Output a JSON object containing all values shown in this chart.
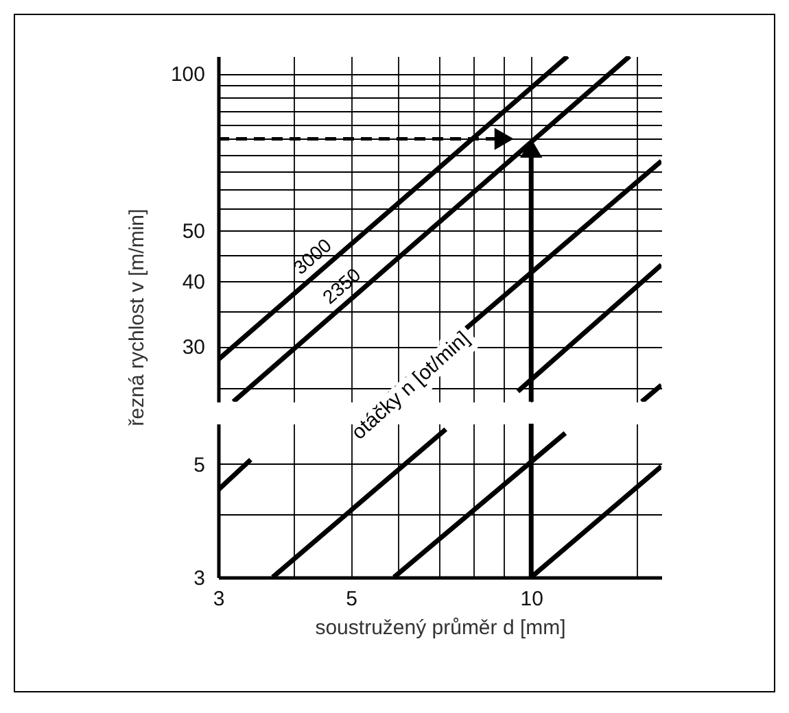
{
  "chart_data": [
    {
      "type": "line",
      "ylabel": "řezná rychlost v [m/min]",
      "annotations": [
        "otáčky n [ot/min]"
      ],
      "log": "xy",
      "grid": true,
      "tick_labels": "y",
      "marker": "none",
      "xlim": [
        3,
        16.5
      ],
      "ylim": [
        23.5,
        108
      ],
      "xticks": [
        3,
        {
          "value": 4,
          "label": null
        },
        5,
        {
          "value": 6,
          "label": null
        },
        {
          "value": 7,
          "label": null
        },
        {
          "value": 8,
          "label": null
        },
        {
          "value": 9,
          "label": null
        },
        10,
        {
          "value": 15,
          "label": null
        }
      ],
      "yticks": [
        {
          "value": 25,
          "label": null
        },
        30,
        {
          "value": 35,
          "label": null
        },
        40,
        {
          "value": 45,
          "label": null
        },
        50,
        {
          "value": 55,
          "label": null
        },
        {
          "value": 60,
          "label": null
        },
        {
          "value": 65,
          "label": null
        },
        {
          "value": 70,
          "label": null
        },
        {
          "value": 75,
          "label": null
        },
        {
          "value": 80,
          "label": null
        },
        {
          "value": 85,
          "label": null
        },
        {
          "value": 90,
          "label": null
        },
        {
          "value": 95,
          "label": null
        },
        100
      ],
      "series": [
        {
          "name": "3000",
          "color": "#000000",
          "x": [
            3,
            11.5
          ],
          "values": [
            28.3,
            108
          ]
        },
        {
          "name": "2350",
          "color": "#000000",
          "x": [
            3.18,
            14.6
          ],
          "values": [
            23.5,
            108
          ]
        },
        {
          "color": "#000000",
          "x": [
            5.6,
            16.5
          ],
          "values": [
            23.5,
            68
          ]
        },
        {
          "color": "#000000",
          "x": [
            9.5,
            16.5
          ],
          "values": [
            24.6,
            43
          ]
        },
        {
          "color": "#000000",
          "x": [
            15.3,
            16.5
          ],
          "values": [
            23.5,
            25.3
          ]
        },
        {
          "color": "#000000",
          "x": [
            3,
            8.9
          ],
          "values": [
            75,
            75
          ],
          "line_style": "dashed",
          "marker": "triangle"
        },
        {
          "color": "#000000",
          "x": [
            10,
            10
          ],
          "values": [
            23.5,
            71
          ],
          "marker": "triangle"
        }
      ]
    },
    {
      "type": "line",
      "xlabel": "soustružený průměr d [mm]",
      "log": "xy",
      "grid": true,
      "marker": "none",
      "xlim": [
        3,
        16.5
      ],
      "ylim": [
        3,
        6
      ],
      "xticks": [
        3,
        {
          "value": 4,
          "label": null
        },
        5,
        {
          "value": 6,
          "label": null
        },
        {
          "value": 7,
          "label": null
        },
        {
          "value": 8,
          "label": null
        },
        {
          "value": 9,
          "label": null
        },
        10,
        {
          "value": 15,
          "label": null
        }
      ],
      "yticks": [
        3,
        {
          "value": 4,
          "label": null
        },
        5
      ],
      "series": [
        {
          "color": "#000000",
          "x": [
            3,
            3.4
          ],
          "values": [
            4.45,
            5.1
          ]
        },
        {
          "color": "#000000",
          "x": [
            3.7,
            7.2
          ],
          "values": [
            3,
            5.85
          ]
        },
        {
          "color": "#000000",
          "x": [
            5.9,
            11.4
          ],
          "values": [
            3,
            5.75
          ]
        },
        {
          "color": "#000000",
          "x": [
            10,
            16.5
          ],
          "values": [
            3,
            4.95
          ]
        }
      ],
      "ref_lines": [
        {
          "axis": "x",
          "value": 10,
          "color": "#000000"
        }
      ]
    }
  ]
}
